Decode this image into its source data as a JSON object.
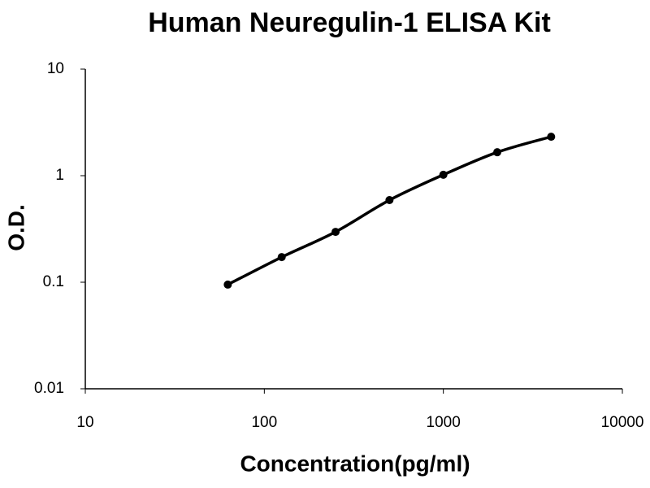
{
  "chart_data": {
    "type": "line",
    "title": "Human Neuregulin-1 ELISA Kit",
    "x_label": "Concentration(pg/ml)",
    "y_label": "O.D.",
    "x": [
      62.5,
      125,
      250,
      500,
      1000,
      2000,
      4000
    ],
    "series": [
      {
        "color": "#000000",
        "values": [
          0.095,
          0.172,
          0.297,
          0.59,
          1.02,
          1.66,
          2.32
        ]
      }
    ],
    "xscale": "log",
    "yscale": "log",
    "xlim": [
      10,
      10000
    ],
    "ylim": [
      0.01,
      10
    ],
    "xticks": [
      10,
      100,
      1000,
      10000
    ],
    "yticks": [
      0.01,
      0.1,
      1,
      10
    ],
    "markers": true,
    "grid": false
  }
}
